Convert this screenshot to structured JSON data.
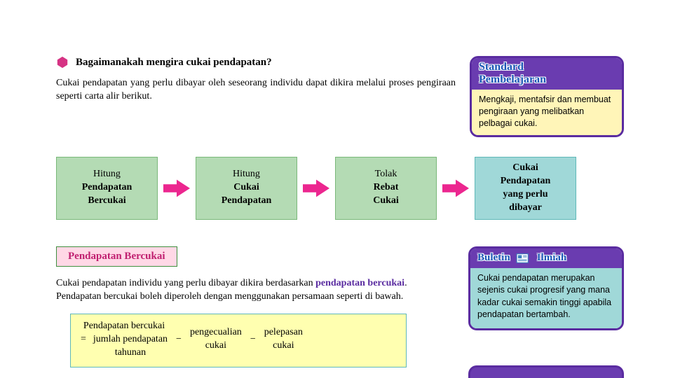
{
  "colors": {
    "icon_hex": "#d63384",
    "flow_green_bg": "#b4dbb4",
    "flow_green_border": "#79b879",
    "flow_teal_bg": "#a0d8d8",
    "flow_teal_border": "#5fb8b8",
    "arrow": "#ec268f",
    "standard_border": "#5a2ca0",
    "standard_header_bg": "#6a3cb0",
    "standard_header_text": "#1a56b6",
    "standard_body_bg": "#fff5b8",
    "sect_bg": "#ffd8e6",
    "sect_border": "#3f8f3f",
    "sect_text": "#c02070",
    "hl_text": "#5a2ca0",
    "formula_bg": "#ffffb0",
    "formula_border": "#5fb8b8",
    "buletin_bg": "#a0d8d8"
  },
  "heading": "Bagaimanakah mengira cukai pendapatan?",
  "intro": "Cukai pendapatan yang perlu dibayar oleh seseorang individu dapat dikira melalui proses pengiraan seperti carta alir berikut.",
  "standard": {
    "title_l1": "Standard",
    "title_l2": "Pembelajaran",
    "body": "Mengkaji, mentafsir dan membuat pengiraan yang melibatkan pelbagai cukai."
  },
  "flow": [
    {
      "l1": "Hitung",
      "l2": "Pendapatan",
      "l3": "Bercukai"
    },
    {
      "l1": "Hitung",
      "l2": "Cukai",
      "l3": "Pendapatan"
    },
    {
      "l1": "Tolak",
      "l2": "Rebat",
      "l3": "Cukai"
    },
    {
      "l1": "Cukai",
      "l2": "Pendapatan",
      "l3": "yang perlu",
      "l4": "dibayar",
      "final": true
    }
  ],
  "section_title": "Pendapatan Bercukai",
  "para2_a": "Cukai pendapatan individu yang perlu dibayar dikira berdasarkan ",
  "para2_hl": "pendapatan bercukai",
  "para2_b": ". Pendapatan bercukai boleh diperoleh dengan menggunakan persamaan seperti di bawah.",
  "formula": {
    "t1_l1": "Pendapatan bercukai",
    "eq": "=",
    "t2_l1": "jumlah pendapatan",
    "t2_l2": "tahunan",
    "m1": "−",
    "t3_l1": "pengecualian",
    "t3_l2": "cukai",
    "m2": "−",
    "t4_l1": "pelepasan",
    "t4_l2": "cukai"
  },
  "buletin": {
    "t1": "Buletin",
    "t2": "Ilmiah",
    "body": "Cukai pendapatan merupakan sejenis cukai progresif yang mana kadar cukai semakin tinggi apabila pendapatan bertambah."
  }
}
